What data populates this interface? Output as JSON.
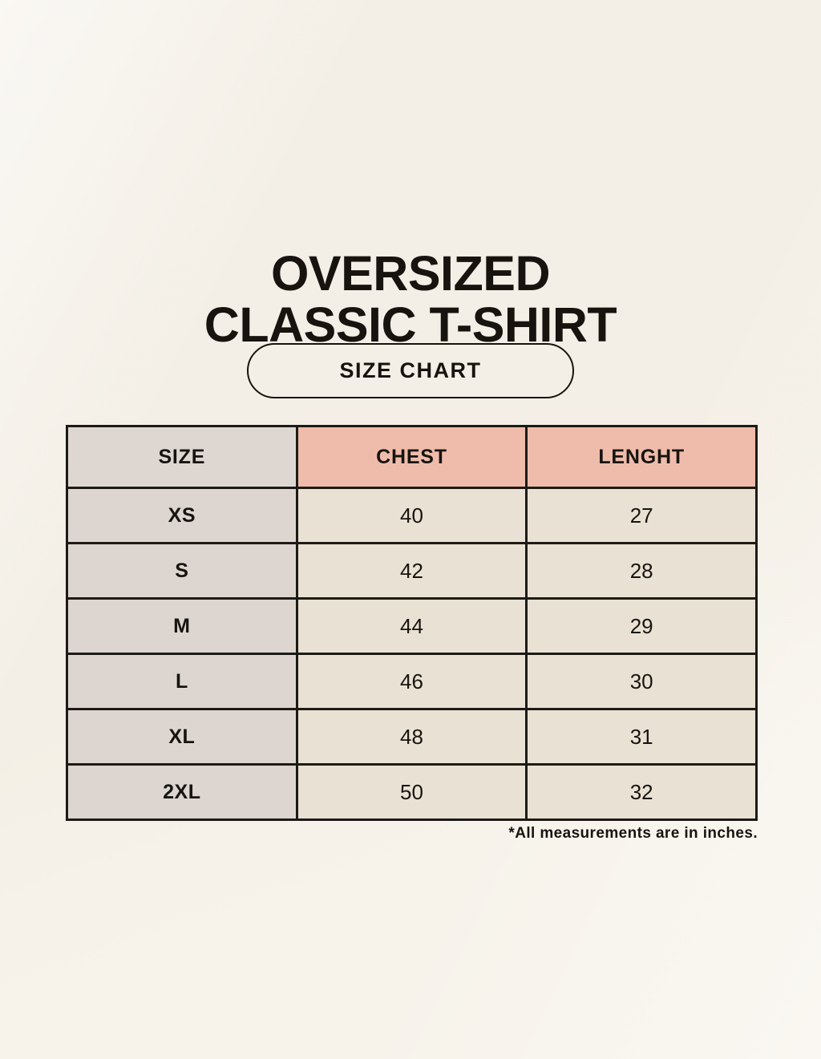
{
  "title": {
    "line1": "OVERSIZED",
    "line2": "CLASSIC T-SHIRT"
  },
  "size_chart_button": {
    "label": "SIZE CHART"
  },
  "footnote": "*All measurements are in inches.",
  "colors": {
    "page-bg": "#f7f3eb",
    "text": "#17140f",
    "border": "#1d1a16",
    "header-size-bg": "#ded7d1",
    "header-accent-bg": "#efbcab",
    "size-col-bg": "#ddd6d0",
    "cell-bg": "#e9e2d4"
  },
  "chart_data": {
    "type": "table",
    "title": "OVERSIZED CLASSIC T-SHIRT",
    "subtitle": "SIZE CHART",
    "columns": [
      "SIZE",
      "CHEST",
      "LENGHT"
    ],
    "rows": [
      [
        "XS",
        "40",
        "27"
      ],
      [
        "S",
        "42",
        "28"
      ],
      [
        "M",
        "44",
        "29"
      ],
      [
        "L",
        "46",
        "30"
      ],
      [
        "XL",
        "48",
        "31"
      ],
      [
        "2XL",
        "50",
        "32"
      ]
    ],
    "units": "inches",
    "notes": "*All measurements are in inches."
  }
}
